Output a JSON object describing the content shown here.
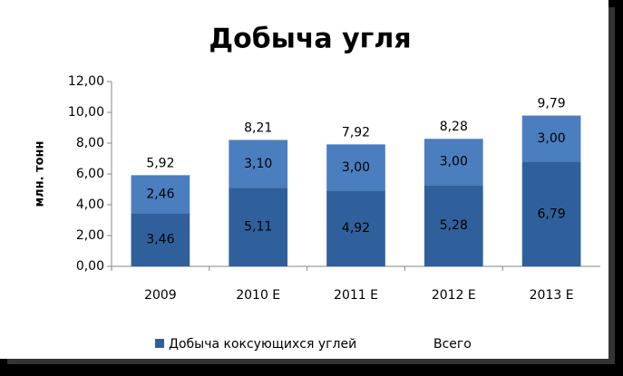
{
  "chart_data": {
    "type": "stacked-bar",
    "title": "Добыча угля",
    "y_label": "млн. тонн",
    "categories": [
      "2009",
      "2010 E",
      "2011 E",
      "2012 E",
      "2013 E"
    ],
    "series": [
      {
        "name": "Добыча коксующихся углей",
        "color": "#30609c",
        "values": [
          3.46,
          5.11,
          4.92,
          5.28,
          6.79
        ],
        "value_labels": [
          "3,46",
          "5,11",
          "4,92",
          "5,28",
          "6,79"
        ]
      },
      {
        "color": "#4a7ebf",
        "values": [
          2.46,
          3.1,
          3.0,
          3.0,
          3.0
        ],
        "value_labels": [
          "2,46",
          "3,10",
          "3,00",
          "3,00",
          "3,00"
        ]
      }
    ],
    "totals": {
      "name": "Всего",
      "values": [
        5.92,
        8.21,
        7.92,
        8.28,
        9.79
      ],
      "value_labels": [
        "5,92",
        "8,21",
        "7,92",
        "8,28",
        "9,79"
      ]
    },
    "ylim": [
      0,
      12
    ],
    "yticks": [
      {
        "value": 0,
        "label": "0,00"
      },
      {
        "value": 2,
        "label": "2,00"
      },
      {
        "value": 4,
        "label": "4,00"
      },
      {
        "value": 6,
        "label": "6,00"
      },
      {
        "value": 8,
        "label": "8,00"
      },
      {
        "value": 10,
        "label": "10,00"
      },
      {
        "value": 12,
        "label": "12,00"
      }
    ],
    "grid": false
  }
}
